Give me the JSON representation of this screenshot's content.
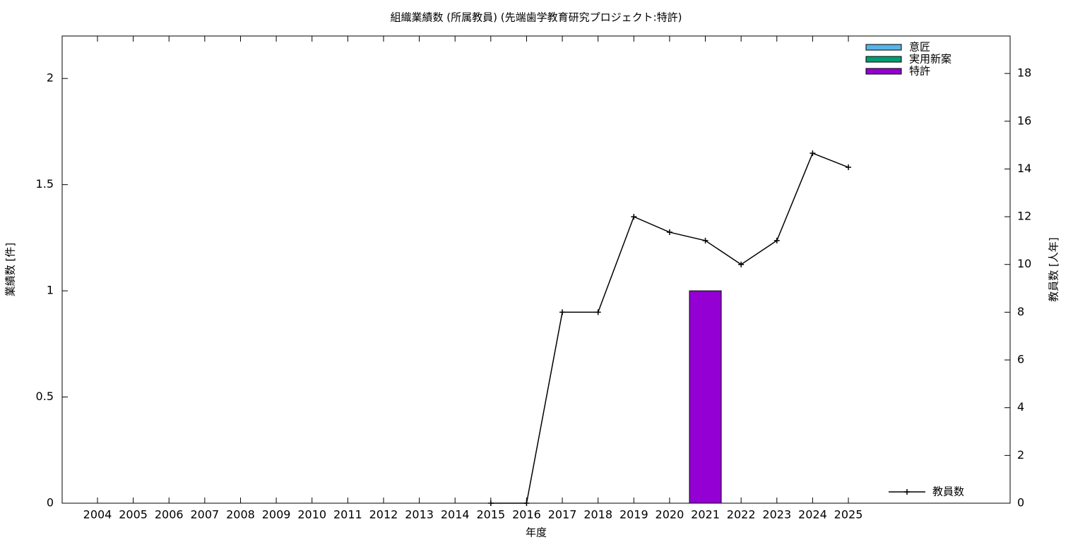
{
  "chart_data": {
    "type": "bar",
    "title": "組織業績数 (所属教員) (先端歯学教育研究プロジェクト:特許)",
    "x_label": "年度",
    "y_label": "業績数 [件]",
    "y2_label": "教員数 [人年]",
    "categories": [
      "2004",
      "2005",
      "2006",
      "2007",
      "2008",
      "2009",
      "2010",
      "2011",
      "2012",
      "2013",
      "2014",
      "2015",
      "2016",
      "2017",
      "2018",
      "2019",
      "2020",
      "2021",
      "2022",
      "2023",
      "2024",
      "2025"
    ],
    "series": [
      {
        "name": "意匠",
        "type": "bar",
        "color": "#56b4e9",
        "values": [
          0,
          0,
          0,
          0,
          0,
          0,
          0,
          0,
          0,
          0,
          0,
          0,
          0,
          0,
          0,
          0,
          0,
          0,
          0,
          0,
          0,
          0
        ]
      },
      {
        "name": "実用新案",
        "type": "bar",
        "color": "#009e73",
        "values": [
          0,
          0,
          0,
          0,
          0,
          0,
          0,
          0,
          0,
          0,
          0,
          0,
          0,
          0,
          0,
          0,
          0,
          0,
          0,
          0,
          0,
          0
        ]
      },
      {
        "name": "特許",
        "type": "bar",
        "color": "#9400d3",
        "values": [
          0,
          0,
          0,
          0,
          0,
          0,
          0,
          0,
          0,
          0,
          0,
          0,
          0,
          0,
          0,
          0,
          0,
          1,
          0,
          0,
          0,
          0
        ]
      },
      {
        "name": "教員数",
        "type": "line",
        "axis": "y2",
        "color": "#000000",
        "values": [
          null,
          null,
          null,
          null,
          null,
          null,
          null,
          null,
          null,
          null,
          null,
          0,
          0,
          8,
          8,
          12,
          11.35,
          11,
          10,
          11,
          14.66,
          14.07
        ]
      }
    ],
    "ylim": [
      0,
      2.2
    ],
    "yticks": [
      0,
      0.5,
      1,
      1.5,
      2
    ],
    "y2lim": [
      0,
      19.57
    ],
    "y2ticks": [
      0,
      2,
      4,
      6,
      8,
      10,
      12,
      14,
      16,
      18
    ]
  }
}
